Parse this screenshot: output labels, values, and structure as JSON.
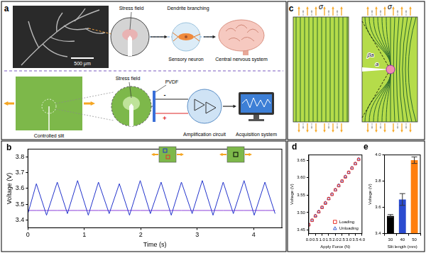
{
  "panel_a": {
    "label": "a",
    "scale_bar": "500 μm",
    "stress_field_top": "Stress field",
    "dendrite": "Dendrite branching",
    "neuron": "Sensory neuron",
    "brain": "Central nervous system",
    "stress_field_bottom": "Stress field",
    "sensor": "PVDF",
    "slit": "Controlled slit",
    "circuit": "Amplification circuit",
    "acquisition": "Acquisition system",
    "plus": "+",
    "minus": "-"
  },
  "panel_c": {
    "label": "c",
    "stress_left": "σ",
    "stress_right": "σ",
    "crack": "a",
    "zone": "βa"
  },
  "chart_data": [
    {
      "title": "b",
      "type": "line",
      "x": [
        0,
        0.15,
        0.33,
        0.52,
        0.7,
        0.88,
        1.07,
        1.25,
        1.44,
        1.62,
        1.8,
        1.99,
        2.17,
        2.36,
        2.54,
        2.72,
        2.91,
        3.09,
        3.28,
        3.46,
        3.64,
        3.83,
        4.01,
        4.2,
        4.38
      ],
      "series": [
        {
          "color": "#2233cc",
          "values": [
            3.44,
            3.63,
            3.43,
            3.64,
            3.44,
            3.65,
            3.43,
            3.64,
            3.44,
            3.63,
            3.43,
            3.65,
            3.44,
            3.64,
            3.43,
            3.64,
            3.44,
            3.65,
            3.43,
            3.64,
            3.44,
            3.65,
            3.43,
            3.64,
            3.44
          ]
        },
        {
          "color": "#8a3fd9",
          "values": [
            3.46,
            3.46,
            3.46,
            3.46,
            3.46,
            3.46,
            3.46,
            3.46,
            3.46,
            3.46,
            3.46,
            3.46,
            3.46,
            3.46,
            3.46,
            3.46,
            3.46,
            3.46,
            3.46,
            3.46,
            3.46,
            3.46,
            3.46,
            3.46,
            3.46
          ]
        }
      ],
      "x_label": "Time (s)",
      "y_label": "Voltage (V)",
      "xlim": [
        0,
        4.5
      ],
      "xticks": [
        0,
        1,
        2,
        3,
        4
      ],
      "ylim": [
        3.35,
        3.85
      ],
      "yticks": [
        3.4,
        3.5,
        3.6,
        3.7,
        3.8
      ],
      "grid": false
    },
    {
      "title": "d",
      "type": "scatter",
      "x": [
        0,
        0.25,
        0.5,
        0.75,
        1,
        1.25,
        1.5,
        1.75,
        2,
        2.25,
        2.5,
        2.75,
        3,
        3.25,
        3.5,
        3.75
      ],
      "series": [
        {
          "name": "Loading",
          "color": "#e8342a",
          "marker": "square",
          "values": [
            3.465,
            3.478,
            3.49,
            3.502,
            3.515,
            3.527,
            3.54,
            3.552,
            3.565,
            3.577,
            3.59,
            3.602,
            3.615,
            3.627,
            3.64,
            3.652
          ]
        },
        {
          "name": "Unloading",
          "color": "#3a5fd0",
          "marker": "triangle",
          "values": [
            3.466,
            3.478,
            3.491,
            3.503,
            3.515,
            3.528,
            3.54,
            3.553,
            3.565,
            3.578,
            3.59,
            3.603,
            3.615,
            3.628,
            3.64,
            3.653
          ]
        }
      ],
      "x_label": "Apply Force (N)",
      "y_label": "Voltage (V)",
      "xlim": [
        0,
        4
      ],
      "xticks": [
        {
          "value": 0,
          "label": "0.0"
        },
        0.5,
        {
          "value": 1,
          "label": "1.0"
        },
        1.5,
        {
          "value": 2,
          "label": "2.0"
        },
        2.5,
        {
          "value": 3,
          "label": "3.0"
        },
        3.5,
        {
          "value": 4,
          "label": "4.0"
        }
      ],
      "ylim": [
        3.44,
        3.665
      ],
      "yticks": [
        3.45,
        {
          "value": 3.5,
          "label": "3.50"
        },
        3.55,
        {
          "value": 3.6,
          "label": "3.60"
        },
        3.65
      ],
      "legend": "lower right",
      "grid": false
    },
    {
      "title": "e",
      "type": "bar",
      "categories": [
        "30",
        "40",
        "50"
      ],
      "values": [
        3.535,
        3.66,
        3.96
      ],
      "errors": [
        0.01,
        0.045,
        0.025
      ],
      "colors": [
        "#000000",
        "#2a4bd0",
        "#ff7f0e"
      ],
      "x_label": "Slit length (mm)",
      "y_label": "Voltage (V)",
      "ylim": [
        3.4,
        4.0
      ],
      "yticks": [
        3.4,
        3.6,
        3.8,
        {
          "value": 4,
          "label": "4.0"
        }
      ],
      "grid": false
    }
  ]
}
